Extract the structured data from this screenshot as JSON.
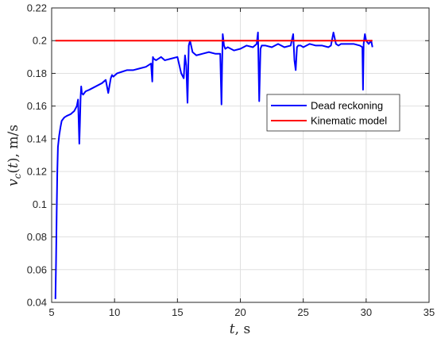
{
  "colors": {
    "dead_reckoning": "#0000ff",
    "kinematic_model": "#ff0000",
    "grid": "#e0e0e0",
    "axes": "#262626"
  },
  "chart_data": {
    "type": "line",
    "xlabel": "t, s",
    "ylabel": "v_c(t), m/s",
    "xlim": [
      5,
      35
    ],
    "ylim": [
      0.04,
      0.22
    ],
    "xticks": [
      5,
      10,
      15,
      20,
      25,
      30,
      35
    ],
    "yticks": [
      0.04,
      0.06,
      0.08,
      0.1,
      0.12,
      0.14,
      0.16,
      0.18,
      0.2,
      0.22
    ],
    "xtick_labels": [
      "5",
      "10",
      "15",
      "20",
      "25",
      "30",
      "35"
    ],
    "ytick_labels": [
      "0.04",
      "0.06",
      "0.08",
      "0.1",
      "0.12",
      "0.14",
      "0.16",
      "0.18",
      "0.2",
      "0.22"
    ],
    "grid": true,
    "legend_position": "right",
    "series": [
      {
        "name": "Dead reckoning",
        "color": "#0000ff",
        "x": [
          5.3,
          5.35,
          5.4,
          5.45,
          5.5,
          5.6,
          5.7,
          5.8,
          6.0,
          6.2,
          6.5,
          6.8,
          7.0,
          7.1,
          7.2,
          7.25,
          7.3,
          7.35,
          7.4,
          7.5,
          7.7,
          8.0,
          8.5,
          9.0,
          9.3,
          9.5,
          9.7,
          9.8,
          9.9,
          10.2,
          10.6,
          11.0,
          11.5,
          12.0,
          12.5,
          12.9,
          13.0,
          13.05,
          13.1,
          13.3,
          13.7,
          14.0,
          14.5,
          15.0,
          15.3,
          15.5,
          15.6,
          15.7,
          15.8,
          15.9,
          16.0,
          16.2,
          16.5,
          17.0,
          17.5,
          18.0,
          18.4,
          18.5,
          18.55,
          18.6,
          18.7,
          18.8,
          19.0,
          19.5,
          20.0,
          20.5,
          21.0,
          21.3,
          21.4,
          21.5,
          21.6,
          21.7,
          22.0,
          22.5,
          23.0,
          23.5,
          24.0,
          24.2,
          24.3,
          24.4,
          24.5,
          24.6,
          24.8,
          25.0,
          25.5,
          26.0,
          26.5,
          27.0,
          27.2,
          27.4,
          27.6,
          27.8,
          28.0,
          28.5,
          29.0,
          29.5,
          29.7,
          29.75,
          29.8,
          29.9,
          30.0,
          30.2,
          30.4,
          30.5
        ],
        "y": [
          0.042,
          0.065,
          0.095,
          0.12,
          0.135,
          0.142,
          0.147,
          0.151,
          0.153,
          0.154,
          0.155,
          0.157,
          0.16,
          0.164,
          0.137,
          0.15,
          0.165,
          0.172,
          0.168,
          0.167,
          0.169,
          0.17,
          0.172,
          0.174,
          0.176,
          0.168,
          0.177,
          0.179,
          0.178,
          0.18,
          0.181,
          0.182,
          0.182,
          0.183,
          0.184,
          0.186,
          0.175,
          0.19,
          0.189,
          0.188,
          0.19,
          0.188,
          0.189,
          0.19,
          0.18,
          0.177,
          0.191,
          0.185,
          0.162,
          0.197,
          0.2,
          0.193,
          0.191,
          0.192,
          0.193,
          0.192,
          0.192,
          0.161,
          0.185,
          0.204,
          0.197,
          0.195,
          0.196,
          0.194,
          0.195,
          0.197,
          0.196,
          0.198,
          0.205,
          0.163,
          0.195,
          0.197,
          0.197,
          0.196,
          0.198,
          0.196,
          0.197,
          0.204,
          0.188,
          0.182,
          0.196,
          0.197,
          0.197,
          0.196,
          0.198,
          0.197,
          0.197,
          0.196,
          0.197,
          0.205,
          0.198,
          0.197,
          0.198,
          0.198,
          0.198,
          0.197,
          0.196,
          0.17,
          0.198,
          0.204,
          0.2,
          0.198,
          0.2,
          0.196
        ]
      },
      {
        "name": "Kinematic model",
        "color": "#ff0000",
        "x": [
          5.3,
          30.5
        ],
        "y": [
          0.2,
          0.2
        ]
      }
    ]
  }
}
